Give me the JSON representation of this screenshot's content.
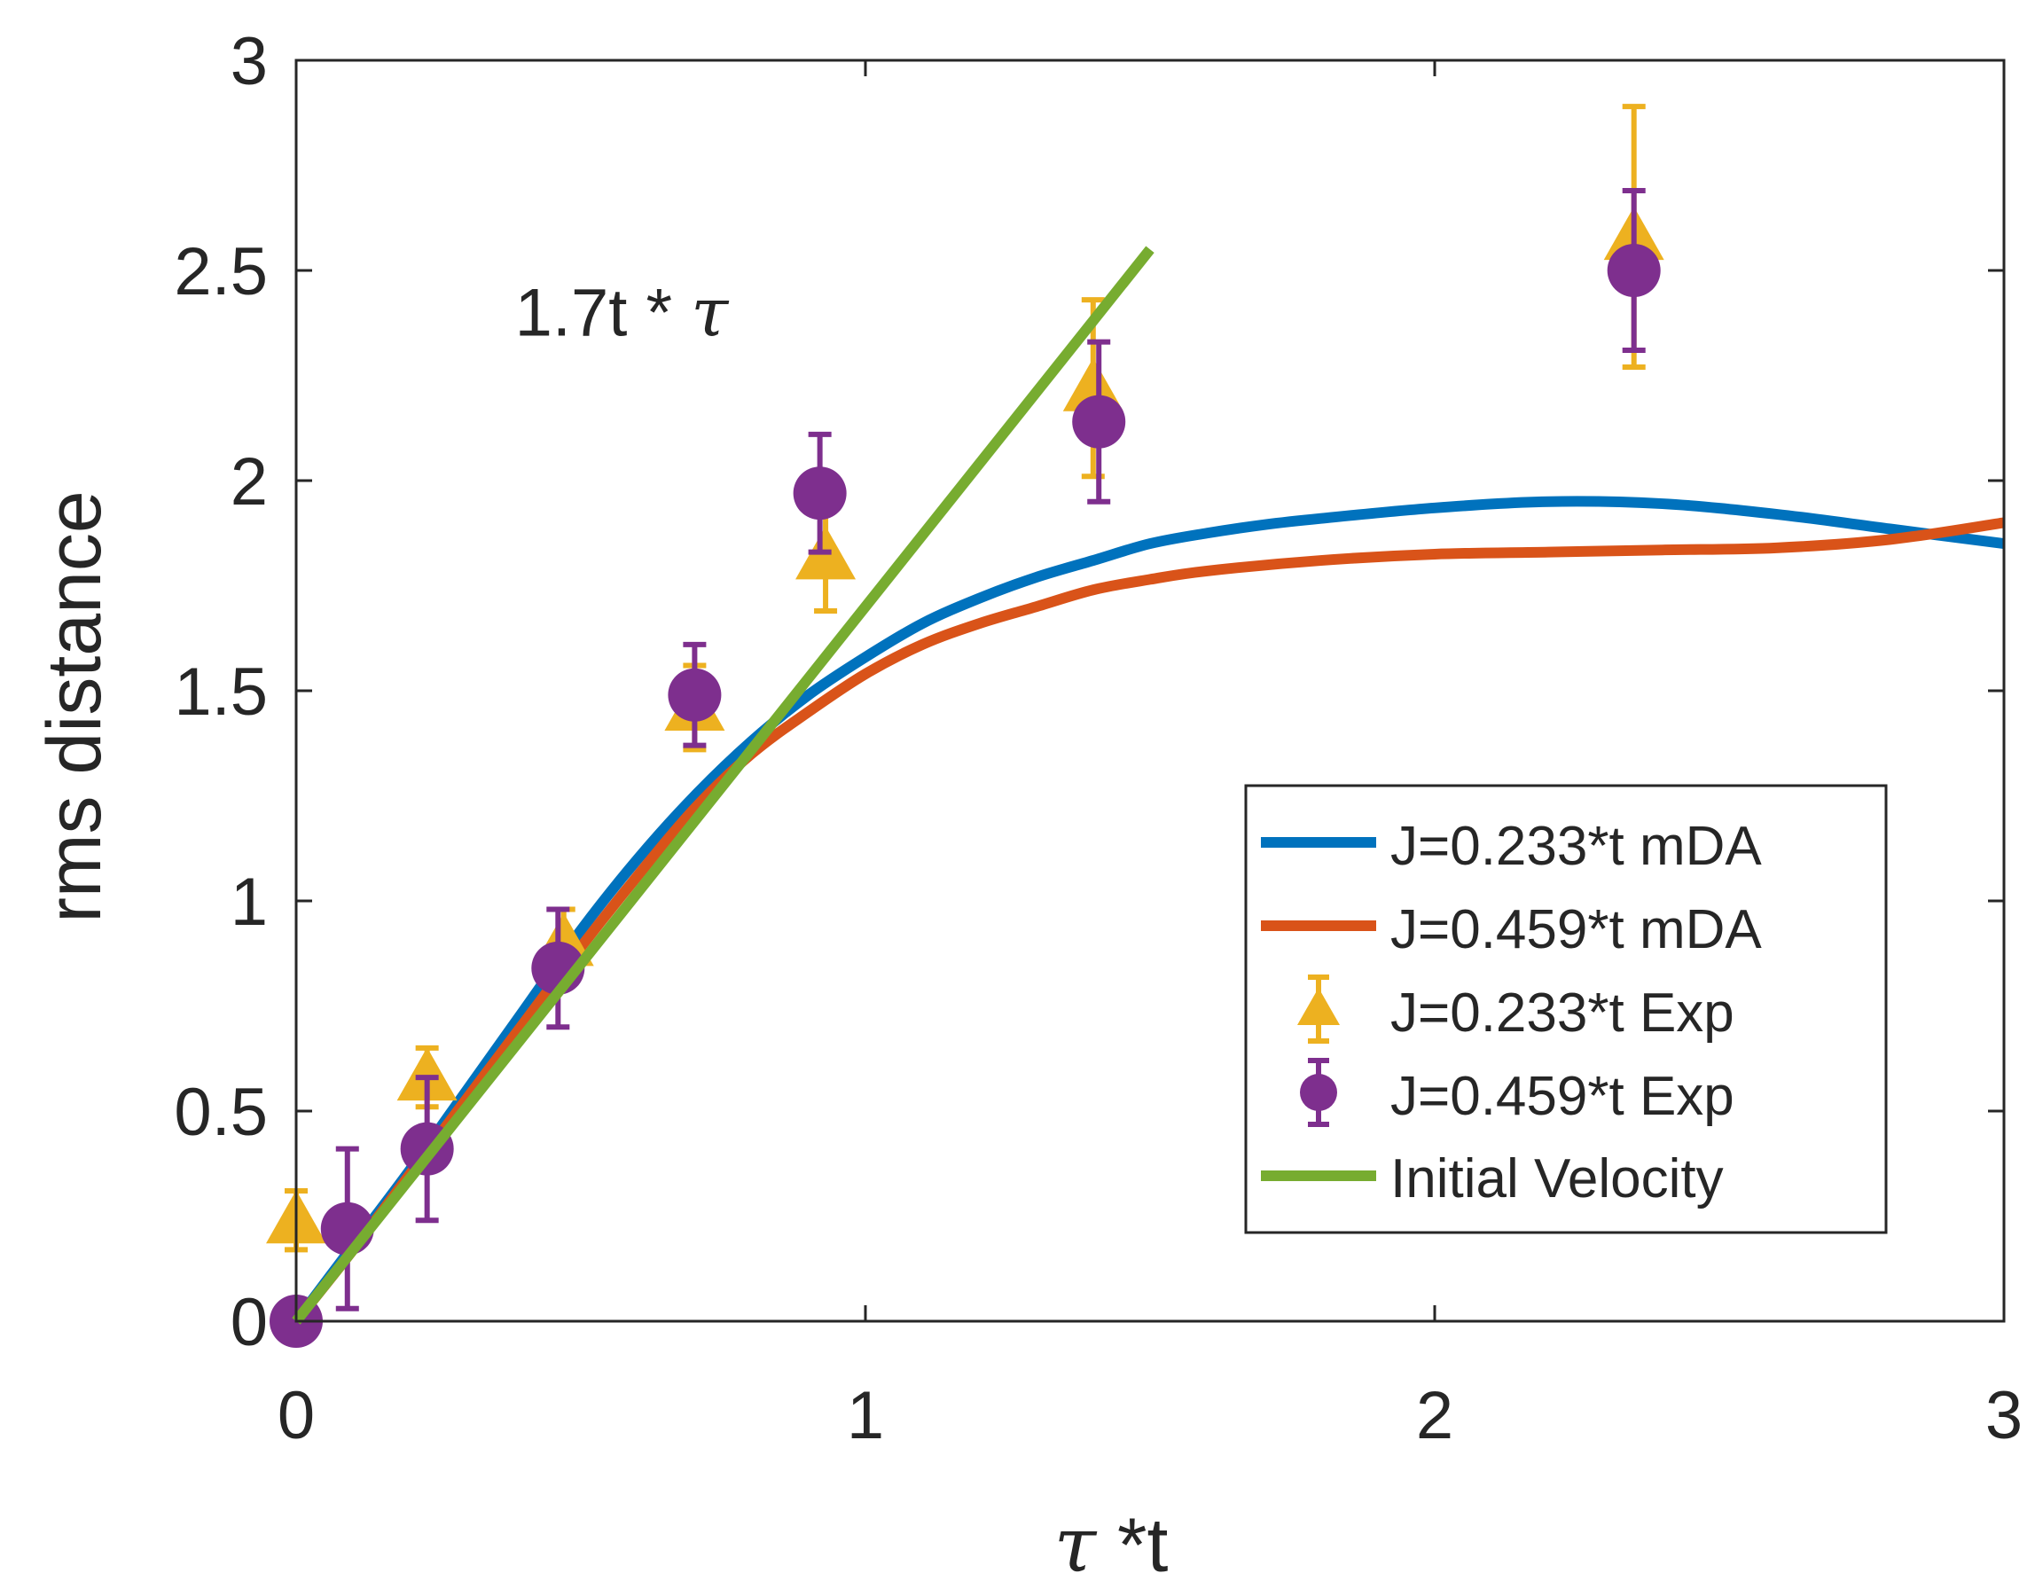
{
  "chart_data": {
    "type": "line",
    "title": "",
    "xlabel_greek": "τ",
    "xlabel_rest": " *t",
    "ylabel": "rms distance",
    "xlim": [
      0,
      3
    ],
    "ylim": [
      0,
      3
    ],
    "xticks": [
      0,
      1,
      2,
      3
    ],
    "xtick_labels": [
      "0",
      "1",
      "2",
      "3"
    ],
    "yticks": [
      0,
      0.5,
      1,
      1.5,
      2,
      2.5,
      3
    ],
    "ytick_labels": [
      "0",
      "0.5",
      "1",
      "1.5",
      "2",
      "2.5",
      "3"
    ],
    "grid": false,
    "legend_position": "bottom-right",
    "annotation": {
      "text": "1.7t * ",
      "greek": "τ",
      "x": 0.73,
      "y": 2.4
    },
    "series": [
      {
        "name": "J=0.233*t mDA",
        "kind": "line",
        "color": "#0072BD",
        "x": [
          0,
          0.1,
          0.2,
          0.3,
          0.4,
          0.5,
          0.6,
          0.7,
          0.8,
          0.9,
          1.0,
          1.1,
          1.2,
          1.3,
          1.4,
          1.5,
          1.6,
          1.7,
          1.8,
          2.0,
          2.2,
          2.4,
          2.6,
          2.8,
          3.0
        ],
        "values": [
          0,
          0.18,
          0.36,
          0.55,
          0.74,
          0.93,
          1.1,
          1.25,
          1.38,
          1.49,
          1.58,
          1.66,
          1.72,
          1.77,
          1.81,
          1.85,
          1.875,
          1.895,
          1.91,
          1.935,
          1.95,
          1.945,
          1.92,
          1.885,
          1.85
        ]
      },
      {
        "name": "J=0.459*t mDA",
        "kind": "line",
        "color": "#D95319",
        "x": [
          0,
          0.1,
          0.2,
          0.3,
          0.4,
          0.5,
          0.6,
          0.7,
          0.8,
          0.9,
          1.0,
          1.1,
          1.2,
          1.3,
          1.4,
          1.5,
          1.6,
          1.8,
          2.0,
          2.2,
          2.4,
          2.6,
          2.8,
          3.0
        ],
        "values": [
          0,
          0.17,
          0.35,
          0.53,
          0.71,
          0.89,
          1.06,
          1.22,
          1.35,
          1.45,
          1.54,
          1.61,
          1.66,
          1.7,
          1.74,
          1.765,
          1.785,
          1.81,
          1.825,
          1.83,
          1.835,
          1.84,
          1.86,
          1.9
        ]
      },
      {
        "name": "J=0.233*t Exp",
        "kind": "errorbar",
        "marker": "triangle",
        "color": "#EDB120",
        "x": [
          0,
          0.23,
          0.47,
          0.7,
          0.93,
          1.4,
          2.35
        ],
        "values": [
          0.24,
          0.58,
          0.9,
          1.46,
          1.82,
          2.22,
          2.58
        ],
        "err": [
          0.07,
          0.07,
          0.08,
          0.1,
          0.13,
          0.21,
          0.31
        ]
      },
      {
        "name": "J=0.459*t Exp",
        "kind": "errorbar",
        "marker": "circle",
        "color": "#7E2F8E",
        "x": [
          0,
          0.09,
          0.23,
          0.46,
          0.7,
          0.92,
          1.41,
          2.35
        ],
        "values": [
          0,
          0.22,
          0.41,
          0.84,
          1.49,
          1.97,
          2.14,
          2.5
        ],
        "err": [
          0,
          0.19,
          0.17,
          0.14,
          0.12,
          0.14,
          0.19,
          0.19
        ]
      },
      {
        "name": "Initial Velocity",
        "kind": "line",
        "color": "#77AC30",
        "x": [
          0,
          1.5
        ],
        "values": [
          0,
          2.55
        ]
      }
    ]
  }
}
